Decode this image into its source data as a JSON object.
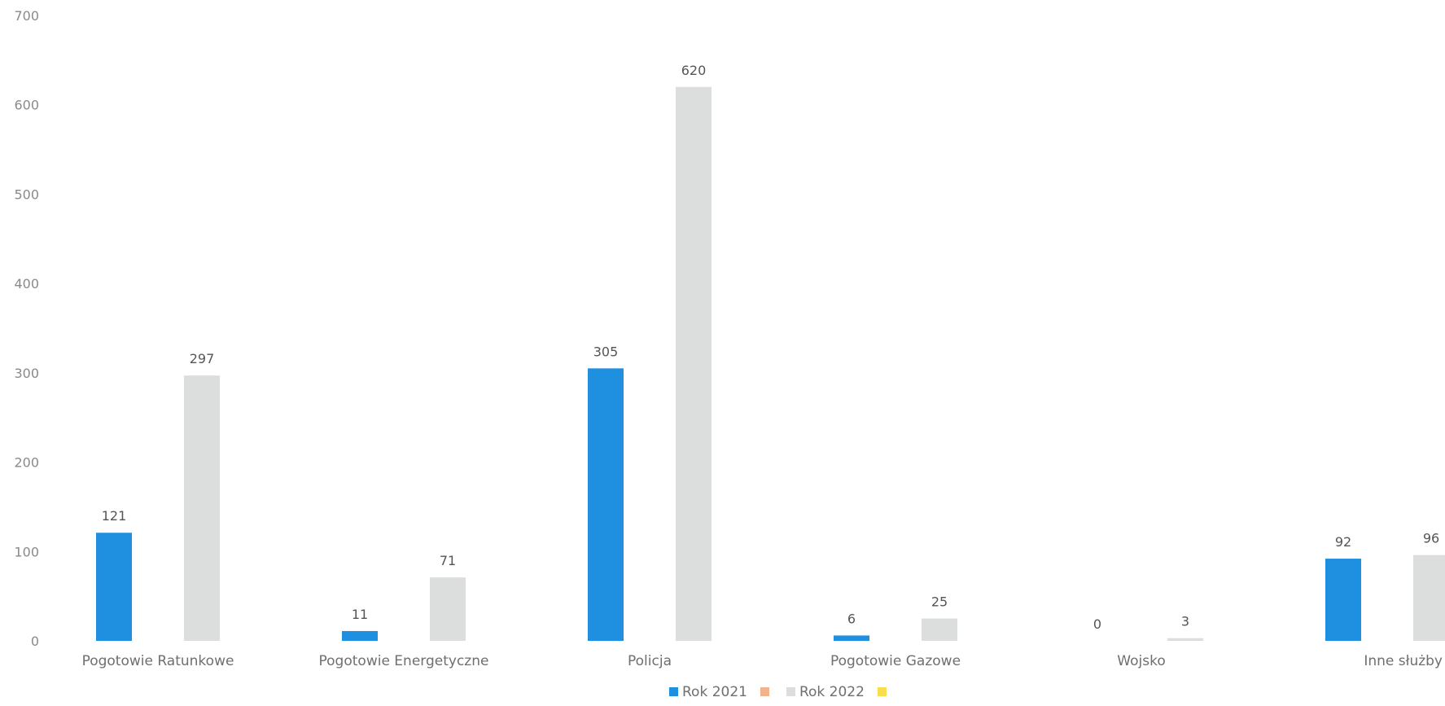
{
  "chart_data": {
    "type": "bar",
    "categories": [
      "Pogotowie Ratunkowe",
      "Pogotowie Energetyczne",
      "Policja",
      "Pogotowie Gazowe",
      "Wojsko",
      "Inne służby"
    ],
    "series": [
      {
        "name": "Rok 2021",
        "values": [
          121,
          11,
          305,
          6,
          0,
          92
        ],
        "color": "#1f8fe0"
      },
      {
        "name": "Rok 2022",
        "values": [
          297,
          71,
          620,
          25,
          3,
          96
        ],
        "color": "#dcdede"
      }
    ],
    "legend": [
      {
        "label": "Rok 2021",
        "color": "#1f8fe0"
      },
      {
        "label": "",
        "color": "#f2b38c"
      },
      {
        "label": "Rok 2022",
        "color": "#dcdede"
      },
      {
        "label": "",
        "color": "#f6df4a"
      }
    ],
    "y_ticks": [
      0,
      100,
      200,
      300,
      400,
      500,
      600,
      700
    ],
    "ylim": [
      0,
      700
    ],
    "title": "",
    "xlabel": "",
    "ylabel": "",
    "grid": false,
    "legend_position": "bottom"
  }
}
